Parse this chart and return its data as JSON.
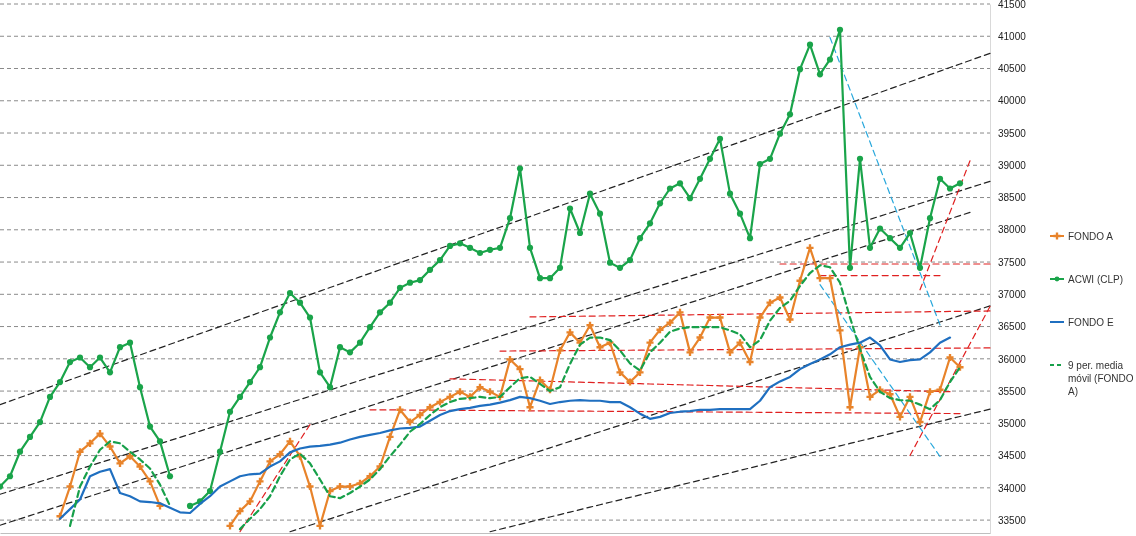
{
  "chart_data": {
    "type": "line",
    "categories": [
      null,
      null,
      null,
      null,
      null,
      null,
      null,
      null,
      null,
      null,
      null,
      null,
      null,
      null,
      null,
      null,
      null,
      null,
      null,
      null,
      null,
      null,
      null,
      null,
      null,
      null,
      null,
      null,
      null,
      null,
      null,
      null,
      null,
      null,
      null,
      null,
      null,
      null,
      null,
      null,
      null,
      null,
      null,
      null,
      null,
      null,
      null,
      null,
      null,
      null,
      null,
      null,
      null,
      null,
      null,
      null,
      null,
      null,
      null,
      null,
      null,
      null,
      null,
      null,
      null,
      null,
      null,
      null,
      null,
      null,
      null,
      null,
      null,
      null,
      null,
      null,
      null,
      null,
      null,
      null,
      null,
      null,
      null,
      null,
      null,
      null,
      null,
      null,
      null,
      null,
      null,
      null,
      null,
      null,
      null,
      null,
      null,
      null,
      null,
      null
    ],
    "ylim": [
      33300,
      41500
    ],
    "yticks": [
      33500,
      34000,
      34500,
      35000,
      35500,
      36000,
      36500,
      37000,
      37500,
      38000,
      38500,
      39000,
      39500,
      40000,
      40500,
      41000,
      41500
    ],
    "grid": "y",
    "tick_labels": "y",
    "legend": "right",
    "series": [
      {
        "name": "FONDO A",
        "color": "#e8832a",
        "marker": "cross",
        "values": [
          null,
          null,
          null,
          null,
          null,
          null,
          33560,
          34020,
          34560,
          34690,
          34840,
          34640,
          34380,
          34490,
          34330,
          34100,
          33720,
          null,
          null,
          null,
          null,
          null,
          null,
          33410,
          33640,
          33790,
          34100,
          34410,
          34520,
          34720,
          34490,
          34020,
          33410,
          33950,
          34020,
          34020,
          34070,
          34180,
          34330,
          34790,
          35210,
          35020,
          35130,
          35250,
          35330,
          35410,
          35490,
          35410,
          35560,
          35490,
          35410,
          35990,
          35840,
          35250,
          35670,
          35520,
          36130,
          36410,
          36250,
          36520,
          36180,
          36250,
          35790,
          35640,
          35790,
          36250,
          36450,
          36560,
          36720,
          36100,
          36330,
          36640,
          36640,
          36100,
          36250,
          35950,
          36640,
          36870,
          36950,
          36610,
          37210,
          37720,
          37250,
          37250,
          36440,
          35250,
          36180,
          35410,
          35520,
          35450,
          35100,
          35410,
          35020,
          35490,
          35520,
          36020,
          35870,
          null,
          null,
          null
        ]
      },
      {
        "name": "ACWI (CLP)",
        "color": "#1aa44a",
        "marker": "circle",
        "values": [
          34020,
          34180,
          34560,
          34790,
          35020,
          35410,
          35640,
          35950,
          36020,
          35870,
          36020,
          35790,
          36180,
          36250,
          35560,
          34950,
          34720,
          34180,
          null,
          33720,
          33790,
          33950,
          34560,
          35180,
          35410,
          35640,
          35870,
          36330,
          36720,
          37020,
          36870,
          36640,
          35790,
          35560,
          36180,
          36100,
          36250,
          36490,
          36720,
          36870,
          37100,
          37180,
          37220,
          37380,
          37530,
          37750,
          37790,
          37720,
          37640,
          37690,
          37720,
          38180,
          38950,
          37720,
          37250,
          37250,
          37410,
          38330,
          37950,
          38560,
          38250,
          37490,
          37410,
          37530,
          37870,
          38100,
          38410,
          38640,
          38720,
          38490,
          38790,
          39100,
          39410,
          38560,
          38250,
          37870,
          39020,
          39100,
          39490,
          39790,
          40490,
          40870,
          40410,
          40640,
          41100,
          37410,
          39100,
          37720,
          38020,
          37870,
          37720,
          37950,
          37410,
          38180,
          38790,
          38640,
          38720,
          null,
          null,
          null
        ]
      },
      {
        "name": "FONDO E",
        "color": "#1f6fc0",
        "values": [
          null,
          null,
          null,
          null,
          null,
          null,
          33520,
          33670,
          33820,
          34180,
          34250,
          34290,
          33920,
          33870,
          33790,
          33780,
          33760,
          33690,
          33620,
          33610,
          33750,
          33870,
          34020,
          34100,
          34180,
          34210,
          34220,
          34330,
          34410,
          34550,
          34610,
          34640,
          34650,
          34670,
          34700,
          34750,
          34790,
          34820,
          34850,
          34890,
          34920,
          34930,
          34950,
          35040,
          35130,
          35190,
          35220,
          35240,
          35270,
          35290,
          35320,
          35360,
          35410,
          35390,
          35350,
          35300,
          35330,
          35350,
          35360,
          35350,
          35350,
          35330,
          35330,
          35250,
          35150,
          35070,
          35100,
          35160,
          35180,
          35190,
          35210,
          35210,
          35220,
          35220,
          35220,
          35220,
          35350,
          35560,
          35650,
          35720,
          35840,
          35920,
          35990,
          36070,
          36180,
          36220,
          36250,
          36330,
          36210,
          35990,
          35950,
          35980,
          35990,
          36100,
          36250,
          36330,
          null,
          null,
          null,
          null
        ]
      },
      {
        "name": "9 per. media móvil (FONDO A)",
        "color": "#17a04a",
        "line_style": "dashed",
        "values": [
          null,
          null,
          null,
          null,
          null,
          null,
          null,
          33410,
          34020,
          34330,
          34590,
          34720,
          34690,
          34560,
          34440,
          34300,
          34050,
          33720,
          null,
          null,
          null,
          null,
          null,
          null,
          33360,
          33520,
          33670,
          33870,
          34180,
          34440,
          34530,
          34380,
          34130,
          33870,
          33840,
          33920,
          34020,
          34130,
          34290,
          34490,
          34670,
          34870,
          34990,
          35130,
          35250,
          35330,
          35380,
          35390,
          35410,
          35390,
          35410,
          35560,
          35700,
          35720,
          35610,
          35500,
          35560,
          35920,
          36220,
          36330,
          36330,
          36290,
          36130,
          35930,
          35820,
          36100,
          36250,
          36420,
          36470,
          36490,
          36490,
          36490,
          36490,
          36440,
          36380,
          36180,
          36290,
          36590,
          36790,
          36900,
          37130,
          37330,
          37450,
          37420,
          37180,
          36640,
          36150,
          35720,
          35490,
          35390,
          35360,
          35350,
          35290,
          35220,
          35360,
          35640,
          35870,
          null,
          null,
          null
        ]
      },
      {
        "color": "#222222",
        "line_style": "dashed",
        "values": [
          35290,
          35345,
          35400,
          35455,
          35510,
          35565,
          35620,
          35675,
          35730,
          35785,
          35840,
          35895,
          35950,
          36005,
          36060,
          36115,
          36170,
          36225,
          36280,
          36335,
          36390,
          36445,
          36500,
          36555,
          36610,
          36665,
          36720,
          36775,
          36830,
          36885,
          36940,
          36995,
          37050,
          37105,
          37160,
          37215,
          37270,
          37325,
          37380,
          37435,
          37490,
          37545,
          37600,
          37655,
          37710,
          37765,
          37820,
          37875,
          37930,
          37985,
          38040,
          38095,
          38150,
          38205,
          38260,
          38315,
          38370,
          38425,
          38480,
          38535,
          38590,
          38645,
          38700,
          38755,
          38810,
          38865,
          38920,
          38975,
          39030,
          39085,
          39140,
          39195,
          39250,
          39305,
          39360,
          39415,
          39470,
          39525,
          39580,
          39635,
          39690,
          39745,
          39800,
          39855,
          39910,
          39965,
          40020,
          40075,
          40130,
          40185,
          40240,
          40295,
          40350,
          40405,
          40460,
          40515,
          40570,
          40625,
          40680,
          40735
        ]
      },
      {
        "color": "#222222",
        "line_style": "dashed",
        "values": [
          33900,
          33949,
          33998,
          34047,
          34096,
          34145,
          34194,
          34243,
          34292,
          34341,
          34390,
          34439,
          34488,
          34537,
          34586,
          34635,
          34684,
          34733,
          34782,
          34831,
          34880,
          34929,
          34978,
          35027,
          35076,
          35125,
          35174,
          35223,
          35272,
          35321,
          35370,
          35419,
          35468,
          35517,
          35566,
          35615,
          35664,
          35713,
          35762,
          35811,
          35860,
          35909,
          35958,
          36007,
          36056,
          36105,
          36154,
          36203,
          36252,
          36301,
          36350,
          36399,
          36448,
          36497,
          36546,
          36595,
          36644,
          36693,
          36742,
          36791,
          36840,
          36889,
          36938,
          36987,
          37036,
          37085,
          37134,
          37183,
          37232,
          37281,
          37330,
          37379,
          37428,
          37477,
          37526,
          37575,
          37624,
          37673,
          37722,
          37771,
          37820,
          37869,
          37918,
          37967,
          38016,
          38065,
          38114,
          38163,
          38212,
          38261,
          38310,
          38359,
          38408,
          38457,
          38506,
          38555,
          38604,
          38653,
          38702,
          38751
        ]
      },
      {
        "color": "#222222",
        "line_style": "dashed",
        "values": [
          33420,
          33470,
          33520,
          33570,
          33620,
          33670,
          33720,
          33770,
          33820,
          33870,
          33920,
          33970,
          34020,
          34070,
          34120,
          34170,
          34220,
          34270,
          34320,
          34370,
          34420,
          34470,
          34520,
          34570,
          34620,
          34670,
          34720,
          34770,
          34820,
          34870,
          34920,
          34970,
          35020,
          35070,
          35120,
          35170,
          35220,
          35270,
          35320,
          35370,
          35420,
          35470,
          35520,
          35570,
          35620,
          35670,
          35720,
          35770,
          35820,
          35870,
          35920,
          35970,
          36020,
          36070,
          36120,
          36170,
          36220,
          36270,
          36320,
          36370,
          36420,
          36470,
          36520,
          36570,
          36620,
          36670,
          36720,
          36770,
          36820,
          36870,
          36920,
          36970,
          37020,
          37070,
          37120,
          37170,
          37220,
          37270,
          37320,
          37370,
          37420,
          37470,
          37520,
          37570,
          37620,
          37670,
          37720,
          37770,
          37820,
          37870,
          37920,
          37970,
          38020,
          38070,
          38120,
          38170,
          38220,
          38270,
          null,
          null
        ]
      },
      {
        "color": "#222222",
        "line_style": "dashed",
        "values": [
          null,
          null,
          null,
          null,
          null,
          null,
          null,
          null,
          null,
          null,
          null,
          null,
          null,
          null,
          null,
          null,
          null,
          null,
          null,
          null,
          null,
          null,
          null,
          null,
          null,
          null,
          null,
          null,
          null,
          33320,
          33370,
          33420,
          33470,
          33520,
          33570,
          33620,
          33670,
          33720,
          33770,
          33820,
          33870,
          33920,
          33970,
          34020,
          34070,
          34120,
          34170,
          34220,
          34270,
          34320,
          34370,
          34420,
          34470,
          34520,
          34570,
          34620,
          34670,
          34720,
          34770,
          34820,
          34870,
          34920,
          34970,
          35020,
          35070,
          35120,
          35170,
          35220,
          35270,
          35320,
          35370,
          35420,
          35470,
          35520,
          35570,
          35620,
          35670,
          35720,
          35770,
          35820,
          35870,
          35920,
          35970,
          36020,
          36070,
          36120,
          36170,
          36220,
          36270,
          36320,
          36370,
          36420,
          36470,
          36520,
          36570,
          36620,
          36670,
          36720,
          36770,
          36820
        ]
      },
      {
        "color": "#222222",
        "line_style": "dashed",
        "values": [
          null,
          null,
          null,
          null,
          null,
          null,
          null,
          null,
          null,
          null,
          null,
          null,
          null,
          null,
          null,
          null,
          null,
          null,
          null,
          null,
          null,
          null,
          null,
          null,
          null,
          null,
          null,
          null,
          null,
          null,
          null,
          null,
          null,
          null,
          null,
          null,
          null,
          null,
          null,
          null,
          null,
          null,
          null,
          null,
          null,
          null,
          null,
          null,
          null,
          33320,
          33358,
          33396,
          33434,
          33472,
          33510,
          33548,
          33586,
          33624,
          33662,
          33700,
          33738,
          33776,
          33814,
          33852,
          33890,
          33928,
          33966,
          34004,
          34042,
          34080,
          34118,
          34156,
          34194,
          34232,
          34270,
          34308,
          34346,
          34384,
          34422,
          34460,
          34498,
          34536,
          34574,
          34612,
          34650,
          34688,
          34726,
          34764,
          34802,
          34840,
          34878,
          34916,
          34954,
          34992,
          35030,
          35068,
          35106,
          35144,
          35182,
          35220
        ]
      },
      {
        "color": "#e02020",
        "line_style": "dashed",
        "values": [
          null,
          null,
          null,
          null,
          null,
          null,
          null,
          null,
          null,
          null,
          null,
          null,
          null,
          null,
          null,
          null,
          null,
          null,
          null,
          null,
          null,
          null,
          null,
          null,
          null,
          null,
          null,
          null,
          null,
          null,
          null,
          null,
          null,
          null,
          null,
          null,
          null,
          35210,
          35209,
          35208,
          35207,
          35206,
          35205,
          35204,
          35203,
          35202,
          35201,
          35200,
          35199,
          35198,
          35197,
          35196,
          35195,
          35194,
          35193,
          35192,
          35191,
          35190,
          35189,
          35188,
          35187,
          35186,
          35185,
          35184,
          35183,
          35182,
          35181,
          35180,
          35179,
          35178,
          35177,
          35176,
          35175,
          35174,
          35173,
          35172,
          35171,
          35170,
          35169,
          35168,
          35167,
          35166,
          35165,
          35164,
          35163,
          35162,
          35161,
          35160,
          35159,
          35158,
          35157,
          35156,
          35155,
          35154,
          35153,
          35152,
          35151,
          null,
          null,
          null
        ]
      },
      {
        "color": "#e02020",
        "line_style": "dashed",
        "values": [
          null,
          null,
          null,
          null,
          null,
          null,
          null,
          null,
          null,
          null,
          null,
          null,
          null,
          null,
          null,
          null,
          null,
          null,
          null,
          null,
          null,
          null,
          null,
          null,
          null,
          null,
          null,
          null,
          null,
          null,
          null,
          null,
          null,
          null,
          null,
          null,
          null,
          null,
          null,
          null,
          null,
          null,
          null,
          null,
          null,
          35690,
          35686,
          35682,
          35678,
          35674,
          35670,
          35666,
          35662,
          35658,
          35654,
          35650,
          35646,
          35642,
          35638,
          35634,
          35630,
          35626,
          35622,
          35618,
          35614,
          35610,
          35606,
          35602,
          35598,
          35594,
          35590,
          35586,
          35582,
          35578,
          35574,
          35570,
          35566,
          35562,
          35558,
          35554,
          35550,
          35546,
          35542,
          35538,
          35534,
          35530,
          35526,
          35522,
          35518,
          35514,
          35510,
          35506,
          35502,
          35498,
          35494,
          35490,
          null,
          null,
          null,
          null
        ]
      },
      {
        "color": "#e02020",
        "line_style": "dashed",
        "values": [
          null,
          null,
          null,
          null,
          null,
          null,
          null,
          null,
          null,
          null,
          null,
          null,
          null,
          null,
          null,
          null,
          null,
          null,
          null,
          null,
          null,
          null,
          null,
          null,
          null,
          null,
          null,
          null,
          null,
          null,
          null,
          null,
          null,
          null,
          null,
          null,
          null,
          null,
          null,
          null,
          null,
          null,
          null,
          null,
          null,
          null,
          null,
          null,
          null,
          null,
          36120,
          36121,
          36122,
          36123,
          36124,
          36125,
          36126,
          36127,
          36128,
          36129,
          36130,
          36131,
          36132,
          36133,
          36134,
          36135,
          36136,
          36137,
          36138,
          36139,
          36140,
          36141,
          36142,
          36143,
          36144,
          36145,
          36146,
          36147,
          36148,
          36149,
          36150,
          36151,
          36152,
          36153,
          36154,
          36155,
          36156,
          36157,
          36158,
          36159,
          36160,
          36161,
          36162,
          36163,
          36164,
          36165,
          36166,
          36167,
          36168,
          36169
        ]
      },
      {
        "color": "#e02020",
        "line_style": "dashed",
        "values": [
          null,
          null,
          null,
          null,
          null,
          null,
          null,
          null,
          null,
          null,
          null,
          null,
          null,
          null,
          null,
          null,
          null,
          null,
          null,
          null,
          null,
          null,
          null,
          null,
          null,
          null,
          null,
          null,
          null,
          null,
          null,
          null,
          null,
          null,
          null,
          null,
          null,
          null,
          null,
          null,
          null,
          null,
          null,
          null,
          null,
          null,
          null,
          null,
          null,
          null,
          null,
          null,
          null,
          36650,
          36652,
          36654,
          36656,
          36658,
          36660,
          36662,
          36664,
          36666,
          36668,
          36670,
          36672,
          36674,
          36676,
          36678,
          36680,
          36682,
          36684,
          36686,
          36688,
          36690,
          36692,
          36694,
          36696,
          36698,
          36700,
          36702,
          36704,
          36706,
          36708,
          36710,
          36712,
          36714,
          36716,
          36718,
          36720,
          36722,
          36724,
          36726,
          36728,
          36730,
          36732,
          36734,
          36736,
          36738,
          36740,
          36742
        ]
      },
      {
        "color": "#e02020",
        "line_style": "dashed",
        "values": [
          null,
          null,
          null,
          null,
          null,
          null,
          null,
          null,
          null,
          null,
          null,
          null,
          null,
          null,
          null,
          null,
          null,
          null,
          null,
          null,
          null,
          null,
          null,
          null,
          null,
          null,
          null,
          null,
          null,
          null,
          null,
          null,
          null,
          null,
          null,
          null,
          null,
          null,
          null,
          null,
          null,
          null,
          null,
          null,
          null,
          null,
          null,
          null,
          null,
          null,
          null,
          null,
          null,
          null,
          null,
          null,
          null,
          null,
          null,
          null,
          null,
          null,
          null,
          null,
          null,
          null,
          null,
          null,
          null,
          null,
          null,
          null,
          null,
          null,
          null,
          null,
          null,
          null,
          37470,
          37470,
          37470,
          37470,
          37470,
          37470,
          37470,
          37470,
          37470,
          37470,
          37470,
          37470,
          37470,
          37470,
          37470,
          37470,
          37470,
          37470,
          37470,
          37470,
          37470,
          37470
        ]
      },
      {
        "color": "#e02020",
        "line_style": "dashed",
        "values": [
          null,
          null,
          null,
          null,
          null,
          null,
          null,
          null,
          null,
          null,
          null,
          null,
          null,
          null,
          null,
          null,
          null,
          null,
          null,
          null,
          null,
          null,
          null,
          null,
          null,
          null,
          null,
          null,
          null,
          null,
          null,
          null,
          null,
          null,
          null,
          null,
          null,
          null,
          null,
          null,
          null,
          null,
          null,
          null,
          null,
          null,
          null,
          null,
          null,
          null,
          null,
          null,
          null,
          null,
          null,
          null,
          null,
          null,
          null,
          null,
          null,
          null,
          null,
          null,
          null,
          null,
          null,
          null,
          null,
          null,
          null,
          null,
          null,
          null,
          null,
          null,
          null,
          null,
          null,
          null,
          null,
          null,
          37290,
          37290,
          37290,
          37290,
          37290,
          37290,
          37290,
          37290,
          37290,
          37290,
          37290,
          37290,
          37290,
          null,
          null,
          null,
          null,
          null
        ]
      },
      {
        "color": "#e02020",
        "line_style": "dashed",
        "values": [
          null,
          null,
          null,
          null,
          null,
          null,
          null,
          null,
          null,
          null,
          null,
          null,
          null,
          null,
          null,
          null,
          null,
          null,
          null,
          null,
          null,
          null,
          null,
          null,
          33320,
          33557,
          33794,
          34031,
          34268,
          34505,
          34742,
          34979,
          null,
          null,
          null,
          null,
          null,
          null,
          null,
          null,
          null,
          null,
          null,
          null,
          null,
          null,
          null,
          null,
          null,
          null,
          null,
          null,
          null,
          null,
          null,
          null,
          null,
          null,
          null,
          null,
          null,
          null,
          null,
          null,
          null,
          null,
          null,
          null,
          null,
          null,
          null,
          null,
          null,
          null,
          null,
          null,
          null,
          null,
          null,
          null,
          null,
          null,
          null,
          null,
          null,
          null,
          null,
          null,
          null,
          null,
          null,
          null,
          null,
          null,
          null,
          null,
          null,
          null,
          null,
          null
        ]
      },
      {
        "color": "#e02020",
        "line_style": "dashed",
        "values": [
          null,
          null,
          null,
          null,
          null,
          null,
          null,
          null,
          null,
          null,
          null,
          null,
          null,
          null,
          null,
          null,
          null,
          null,
          null,
          null,
          null,
          null,
          null,
          null,
          null,
          null,
          null,
          null,
          null,
          null,
          null,
          null,
          null,
          null,
          null,
          null,
          null,
          null,
          null,
          null,
          null,
          null,
          null,
          null,
          null,
          null,
          null,
          null,
          null,
          null,
          null,
          null,
          null,
          null,
          null,
          null,
          null,
          null,
          null,
          null,
          null,
          null,
          null,
          null,
          null,
          null,
          null,
          null,
          null,
          null,
          null,
          null,
          null,
          null,
          null,
          null,
          null,
          null,
          null,
          null,
          null,
          null,
          null,
          null,
          null,
          null,
          null,
          null,
          null,
          null,
          null,
          null,
          37070,
          37470,
          37870,
          38270,
          38670,
          39070,
          null,
          null
        ]
      },
      {
        "color": "#e02020",
        "line_style": "dashed",
        "values": [
          null,
          null,
          null,
          null,
          null,
          null,
          null,
          null,
          null,
          null,
          null,
          null,
          null,
          null,
          null,
          null,
          null,
          null,
          null,
          null,
          null,
          null,
          null,
          null,
          null,
          null,
          null,
          null,
          null,
          null,
          null,
          null,
          null,
          null,
          null,
          null,
          null,
          null,
          null,
          null,
          null,
          null,
          null,
          null,
          null,
          null,
          null,
          null,
          null,
          null,
          null,
          null,
          null,
          null,
          null,
          null,
          null,
          null,
          null,
          null,
          null,
          null,
          null,
          null,
          null,
          null,
          null,
          null,
          null,
          null,
          null,
          null,
          null,
          null,
          null,
          null,
          null,
          null,
          null,
          null,
          null,
          null,
          null,
          null,
          null,
          null,
          null,
          null,
          null,
          null,
          null,
          34500,
          34789,
          35078,
          35367,
          35656,
          35945,
          36234,
          36523,
          36812
        ]
      },
      {
        "color": "#29a8dc",
        "line_style": "dashed",
        "values": [
          null,
          null,
          null,
          null,
          null,
          null,
          null,
          null,
          null,
          null,
          null,
          null,
          null,
          null,
          null,
          null,
          null,
          null,
          null,
          null,
          null,
          null,
          null,
          null,
          null,
          null,
          null,
          null,
          null,
          null,
          null,
          null,
          null,
          null,
          null,
          null,
          null,
          null,
          null,
          null,
          null,
          null,
          null,
          null,
          null,
          null,
          null,
          null,
          null,
          null,
          null,
          null,
          null,
          null,
          null,
          null,
          null,
          null,
          null,
          null,
          null,
          null,
          null,
          null,
          null,
          null,
          null,
          null,
          null,
          null,
          null,
          null,
          null,
          null,
          null,
          null,
          null,
          null,
          null,
          null,
          null,
          null,
          null,
          40980,
          40575,
          40170,
          39765,
          39360,
          38955,
          38550,
          38145,
          37740,
          37335,
          36930,
          36525,
          null,
          null,
          null,
          null,
          null
        ]
      },
      {
        "color": "#29a8dc",
        "line_style": "dashed",
        "values": [
          null,
          null,
          null,
          null,
          null,
          null,
          null,
          null,
          null,
          null,
          null,
          null,
          null,
          null,
          null,
          null,
          null,
          null,
          null,
          null,
          null,
          null,
          null,
          null,
          null,
          null,
          null,
          null,
          null,
          null,
          null,
          null,
          null,
          null,
          null,
          null,
          null,
          null,
          null,
          null,
          null,
          null,
          null,
          null,
          null,
          null,
          null,
          null,
          null,
          null,
          null,
          null,
          null,
          null,
          null,
          null,
          null,
          null,
          null,
          null,
          null,
          null,
          null,
          null,
          null,
          null,
          null,
          null,
          null,
          null,
          null,
          null,
          null,
          null,
          null,
          null,
          null,
          null,
          null,
          null,
          null,
          null,
          37150,
          36928,
          36706,
          36484,
          36262,
          36040,
          35818,
          35596,
          35374,
          35152,
          34930,
          34708,
          34486,
          null,
          null,
          null,
          null,
          null
        ]
      }
    ]
  }
}
